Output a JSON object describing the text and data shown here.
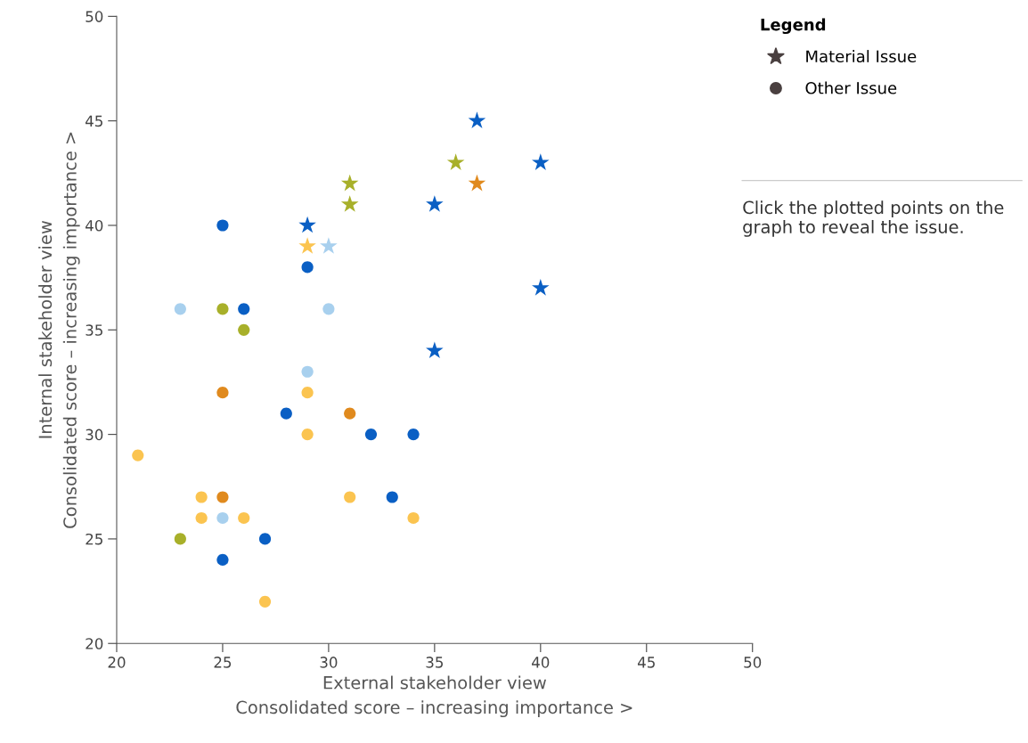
{
  "chart_data": {
    "type": "scatter",
    "xlabel": "External stakeholder view\nConsolidated score – increasing importance >",
    "ylabel": "Internal stakeholder view\nConsolidated score – increasing importance >",
    "legend_title": "Legend",
    "legend": "top right",
    "grid": false,
    "xlim": [
      20,
      50
    ],
    "xticks": [
      20,
      25,
      30,
      35,
      40,
      45,
      50
    ],
    "ylim": [
      20,
      50
    ],
    "yticks": [
      20,
      25,
      30,
      35,
      40,
      45,
      50
    ],
    "annotations": [
      "Click the plotted points on the graph to reveal the issue."
    ],
    "series": [
      {
        "name": "Material Issue",
        "marker": "star",
        "color": "#4a4040",
        "x": [
          37,
          40,
          36,
          37,
          31,
          31,
          35,
          29,
          29,
          30,
          40,
          35
        ],
        "values": [
          45,
          43,
          43,
          42,
          42,
          41,
          41,
          40,
          39,
          39,
          37,
          34
        ],
        "colors": [
          "#0a5fc4",
          "#0a5fc4",
          "#a8b02a",
          "#e08a1e",
          "#a8b02a",
          "#a8b02a",
          "#0a5fc4",
          "#0a5fc4",
          "#fbc450",
          "#a8d0ee",
          "#0a5fc4",
          "#0a5fc4"
        ]
      },
      {
        "name": "Other Issue",
        "marker": "circle",
        "color": "#4a4040",
        "x": [
          25,
          29,
          23,
          25,
          26,
          30,
          26,
          29,
          25,
          29,
          28,
          31,
          29,
          32,
          34,
          21,
          24,
          25,
          31,
          33,
          24,
          25,
          26,
          34,
          23,
          27,
          25,
          27
        ],
        "values": [
          40,
          38,
          36,
          36,
          36,
          36,
          35,
          33,
          32,
          32,
          31,
          31,
          30,
          30,
          30,
          29,
          27,
          27,
          27,
          27,
          26,
          26,
          26,
          26,
          25,
          25,
          24,
          22
        ],
        "colors": [
          "#0a5fc4",
          "#0a5fc4",
          "#a8d0ee",
          "#a8b02a",
          "#0a5fc4",
          "#a8d0ee",
          "#a8b02a",
          "#a8d0ee",
          "#e08a1e",
          "#fbc450",
          "#0a5fc4",
          "#e08a1e",
          "#fbc450",
          "#0a5fc4",
          "#0a5fc4",
          "#fbc450",
          "#fbc450",
          "#e08a1e",
          "#fbc450",
          "#0a5fc4",
          "#fbc450",
          "#a8d0ee",
          "#fbc450",
          "#fbc450",
          "#a8b02a",
          "#0a5fc4",
          "#0a5fc4",
          "#fbc450"
        ]
      }
    ]
  }
}
